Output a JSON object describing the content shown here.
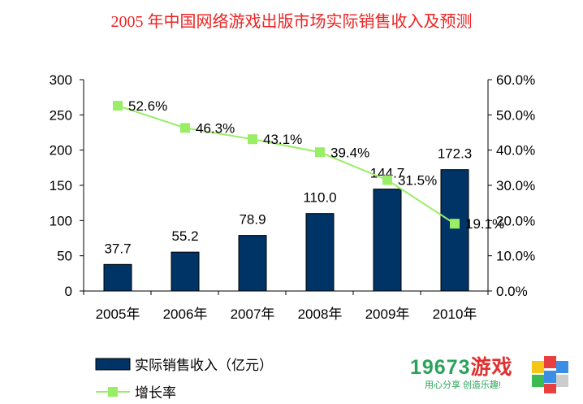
{
  "chart_data": {
    "type": "bar+line",
    "title": "2005 年中国网络游戏出版市场实际销售收入及预测",
    "categories": [
      "2005年",
      "2006年",
      "2007年",
      "2008年",
      "2009年",
      "2010年"
    ],
    "series": [
      {
        "name": "实际销售收入（亿元）",
        "type": "bar",
        "axis": "left",
        "values": [
          37.7,
          55.2,
          78.9,
          110.0,
          144.7,
          172.3
        ],
        "labels": [
          "37.7",
          "55.2",
          "78.9",
          "110.0",
          "144.7",
          "172.3"
        ],
        "color": "#003366"
      },
      {
        "name": "增长率",
        "type": "line",
        "axis": "right",
        "values": [
          52.6,
          46.3,
          43.1,
          39.4,
          31.5,
          19.1
        ],
        "labels": [
          "52.6%",
          "46.3%",
          "43.1%",
          "39.4%",
          "31.5%",
          "19.1%"
        ],
        "color": "#99ee66"
      }
    ],
    "y_left": {
      "range": [
        0,
        300
      ],
      "ticks": [
        "0",
        "50",
        "100",
        "150",
        "200",
        "250",
        "300"
      ]
    },
    "y_right": {
      "range": [
        0,
        60
      ],
      "ticks": [
        "0.0%",
        "10.0%",
        "20.0%",
        "30.0%",
        "40.0%",
        "50.0%",
        "60.0%"
      ]
    },
    "grid": false,
    "legend": "bottom-left"
  },
  "logo": {
    "name": "19673",
    "name_cn": "游戏",
    "slogan": "用心分享 创造乐趣!"
  }
}
